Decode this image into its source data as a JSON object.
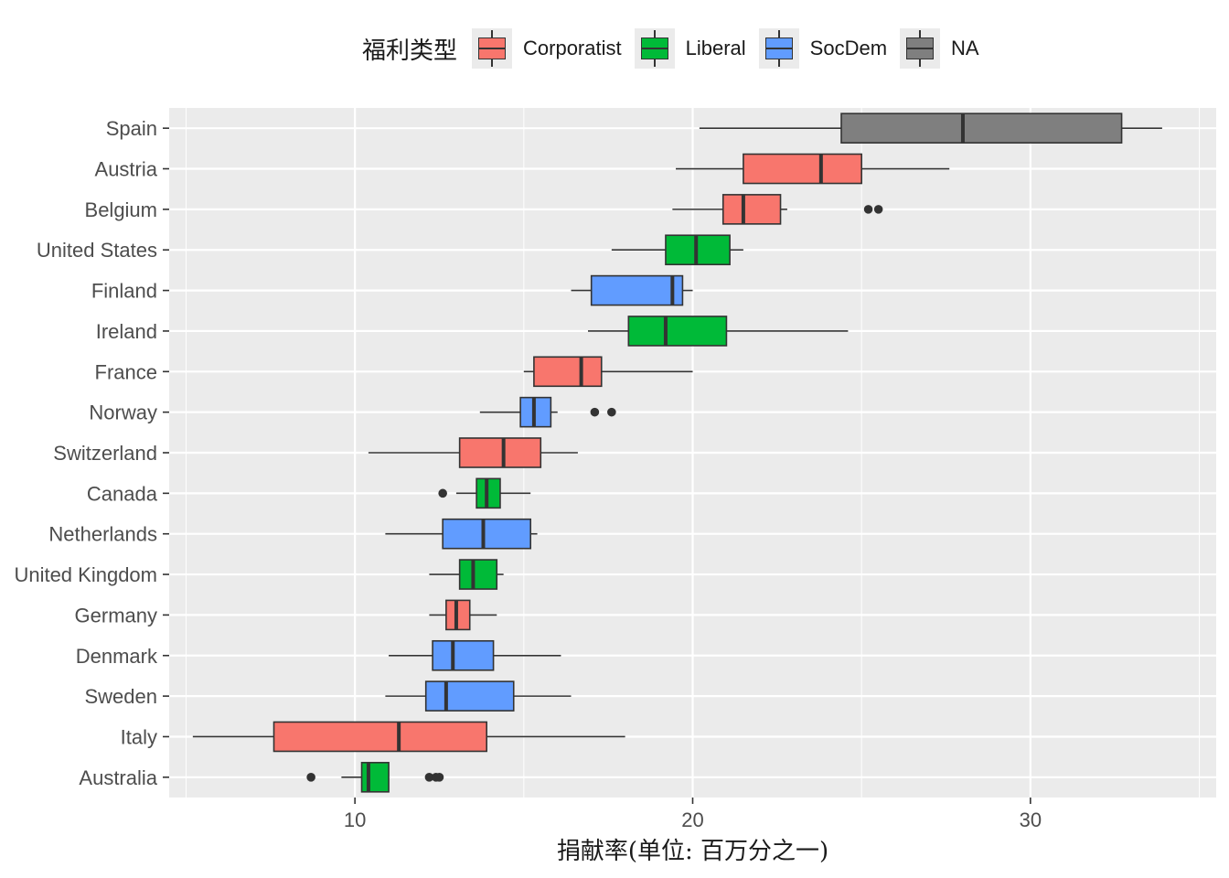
{
  "chart_data": {
    "type": "boxplot",
    "orientation": "horizontal",
    "title": "",
    "xlabel": "捐献率(单位: 百万分之一)",
    "ylabel": "",
    "xlim": [
      4.5,
      35.5
    ],
    "xticks": [
      10,
      20,
      30
    ],
    "grid": true,
    "legend": {
      "title": "福利类型",
      "position": "top",
      "entries": [
        {
          "name": "Corporatist",
          "color": "#F8766D"
        },
        {
          "name": "Liberal",
          "color": "#00BA38"
        },
        {
          "name": "SocDem",
          "color": "#619CFF"
        },
        {
          "name": "NA",
          "color": "#7F7F7F"
        }
      ]
    },
    "categories": [
      "Spain",
      "Austria",
      "Belgium",
      "United States",
      "Finland",
      "Ireland",
      "France",
      "Norway",
      "Switzerland",
      "Canada",
      "Netherlands",
      "United Kingdom",
      "Germany",
      "Denmark",
      "Sweden",
      "Italy",
      "Australia"
    ],
    "boxes": [
      {
        "country": "Spain",
        "group": "NA",
        "whisker_low": 20.2,
        "q1": 24.4,
        "median": 28.0,
        "q3": 32.7,
        "whisker_high": 33.9,
        "outliers": []
      },
      {
        "country": "Austria",
        "group": "Corporatist",
        "whisker_low": 19.5,
        "q1": 21.5,
        "median": 23.8,
        "q3": 25.0,
        "whisker_high": 27.6,
        "outliers": []
      },
      {
        "country": "Belgium",
        "group": "Corporatist",
        "whisker_low": 19.4,
        "q1": 20.9,
        "median": 21.5,
        "q3": 22.6,
        "whisker_high": 22.8,
        "outliers": [
          25.2,
          25.5
        ]
      },
      {
        "country": "United States",
        "group": "Liberal",
        "whisker_low": 17.6,
        "q1": 19.2,
        "median": 20.1,
        "q3": 21.1,
        "whisker_high": 21.5,
        "outliers": []
      },
      {
        "country": "Finland",
        "group": "SocDem",
        "whisker_low": 16.4,
        "q1": 17.0,
        "median": 19.4,
        "q3": 19.7,
        "whisker_high": 20.0,
        "outliers": []
      },
      {
        "country": "Ireland",
        "group": "Liberal",
        "whisker_low": 16.9,
        "q1": 18.1,
        "median": 19.2,
        "q3": 21.0,
        "whisker_high": 24.6,
        "outliers": []
      },
      {
        "country": "France",
        "group": "Corporatist",
        "whisker_low": 15.0,
        "q1": 15.3,
        "median": 16.7,
        "q3": 17.3,
        "whisker_high": 20.0,
        "outliers": []
      },
      {
        "country": "Norway",
        "group": "SocDem",
        "whisker_low": 13.7,
        "q1": 14.9,
        "median": 15.3,
        "q3": 15.8,
        "whisker_high": 16.0,
        "outliers": [
          17.1,
          17.6
        ]
      },
      {
        "country": "Switzerland",
        "group": "Corporatist",
        "whisker_low": 10.4,
        "q1": 13.1,
        "median": 14.4,
        "q3": 15.5,
        "whisker_high": 16.6,
        "outliers": []
      },
      {
        "country": "Canada",
        "group": "Liberal",
        "whisker_low": 13.0,
        "q1": 13.6,
        "median": 13.9,
        "q3": 14.3,
        "whisker_high": 15.2,
        "outliers": [
          12.6
        ]
      },
      {
        "country": "Netherlands",
        "group": "SocDem",
        "whisker_low": 10.9,
        "q1": 12.6,
        "median": 13.8,
        "q3": 15.2,
        "whisker_high": 15.4,
        "outliers": []
      },
      {
        "country": "United Kingdom",
        "group": "Liberal",
        "whisker_low": 12.2,
        "q1": 13.1,
        "median": 13.5,
        "q3": 14.2,
        "whisker_high": 14.4,
        "outliers": []
      },
      {
        "country": "Germany",
        "group": "Corporatist",
        "whisker_low": 12.2,
        "q1": 12.7,
        "median": 13.0,
        "q3": 13.4,
        "whisker_high": 14.2,
        "outliers": []
      },
      {
        "country": "Denmark",
        "group": "SocDem",
        "whisker_low": 11.0,
        "q1": 12.3,
        "median": 12.9,
        "q3": 14.1,
        "whisker_high": 16.1,
        "outliers": []
      },
      {
        "country": "Sweden",
        "group": "SocDem",
        "whisker_low": 10.9,
        "q1": 12.1,
        "median": 12.7,
        "q3": 14.7,
        "whisker_high": 16.4,
        "outliers": []
      },
      {
        "country": "Italy",
        "group": "Corporatist",
        "whisker_low": 5.2,
        "q1": 7.6,
        "median": 11.3,
        "q3": 13.9,
        "whisker_high": 18.0,
        "outliers": []
      },
      {
        "country": "Australia",
        "group": "Liberal",
        "whisker_low": 9.6,
        "q1": 10.2,
        "median": 10.4,
        "q3": 11.0,
        "whisker_high": 11.0,
        "outliers": [
          8.7,
          12.2,
          12.4,
          12.5
        ]
      }
    ]
  }
}
